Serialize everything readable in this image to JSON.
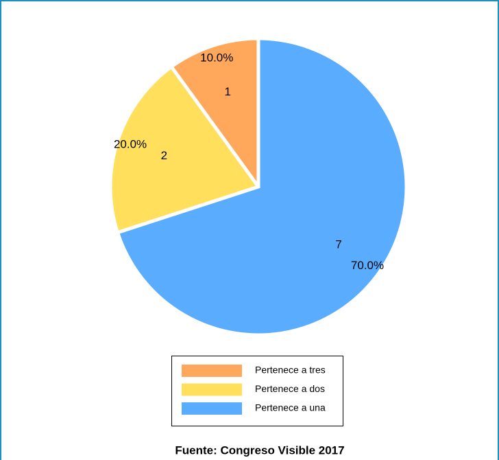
{
  "chart_data": {
    "type": "pie",
    "categories": [
      "Pertenece a tres",
      "Pertenece a dos",
      "Pertenece a una"
    ],
    "values": [
      1,
      2,
      7
    ],
    "percent_labels": [
      "10.0%",
      "20.0%",
      "70.0%"
    ],
    "colors": [
      "#ffa85c",
      "#ffdf5c",
      "#5aacff"
    ],
    "legend": "bottom",
    "source": "Fuente: Congreso Visible 2017"
  }
}
